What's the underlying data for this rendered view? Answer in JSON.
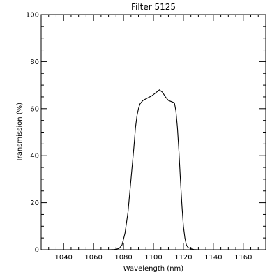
{
  "chart_data": {
    "type": "line",
    "title": "Filter 5125",
    "xlabel": "Wavelength (nm)",
    "ylabel": "Transmission (%)",
    "xlim": [
      1025,
      1175
    ],
    "ylim": [
      0,
      100
    ],
    "xticks": [
      1040,
      1060,
      1080,
      1100,
      1120,
      1140,
      1160
    ],
    "yticks": [
      0,
      20,
      40,
      60,
      80,
      100
    ],
    "grid": false,
    "line_color": "#000000",
    "series": [
      {
        "x": [
          1055,
          1060,
          1065,
          1070,
          1074,
          1077,
          1079,
          1081,
          1083,
          1085,
          1087,
          1088,
          1089,
          1090,
          1091,
          1093,
          1096,
          1099,
          1101,
          1103,
          1104,
          1105,
          1106,
          1107,
          1108,
          1110,
          1112,
          1114,
          1115,
          1116,
          1117,
          1118,
          1119,
          1120,
          1121,
          1122,
          1123,
          1125,
          1127,
          1130,
          1135,
          1140,
          1148
        ],
        "y": [
          0,
          0,
          0,
          0,
          0.1,
          0.5,
          2,
          7,
          16,
          30,
          44,
          52,
          57,
          60,
          62,
          63.5,
          64.5,
          65.5,
          66.5,
          67.5,
          68,
          67.5,
          67,
          66,
          65,
          63.5,
          63,
          62.5,
          59,
          52,
          42,
          30,
          19,
          10,
          5,
          2,
          1,
          0.4,
          0.1,
          0,
          0,
          0,
          0
        ]
      }
    ]
  }
}
